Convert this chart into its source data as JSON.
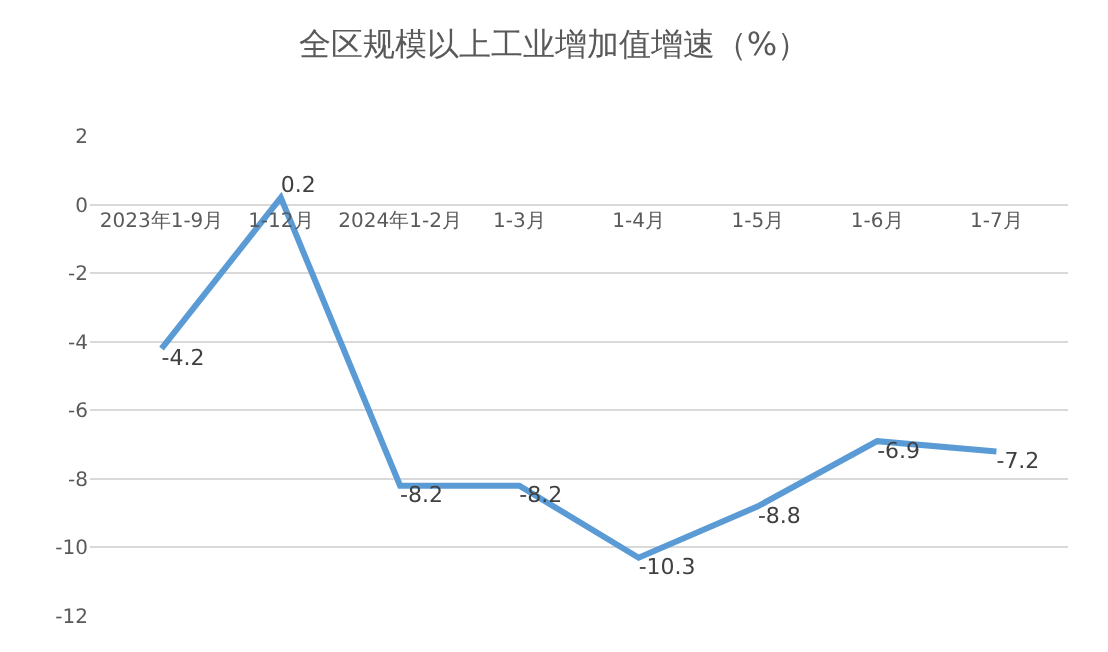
{
  "chart_data": {
    "type": "line",
    "title": "全区规模以上工业增加值增速（%）",
    "categories": [
      "2023年1-9月",
      "1-12月",
      "2024年1-2月",
      "1-3月",
      "1-4月",
      "1-5月",
      "1-6月",
      "1-7月"
    ],
    "series": [
      {
        "color": "#5b9bd5",
        "values": [
          -4.2,
          0.2,
          -8.2,
          -8.2,
          -10.3,
          -8.8,
          -6.9,
          -7.2
        ]
      }
    ],
    "ylim": [
      -12,
      2
    ],
    "yticks": [
      -12,
      -10,
      -8,
      -6,
      -4,
      -2,
      0,
      2
    ],
    "grid": "y",
    "data_labels": true,
    "legend": false,
    "marker": "none",
    "line_style": "solid"
  }
}
